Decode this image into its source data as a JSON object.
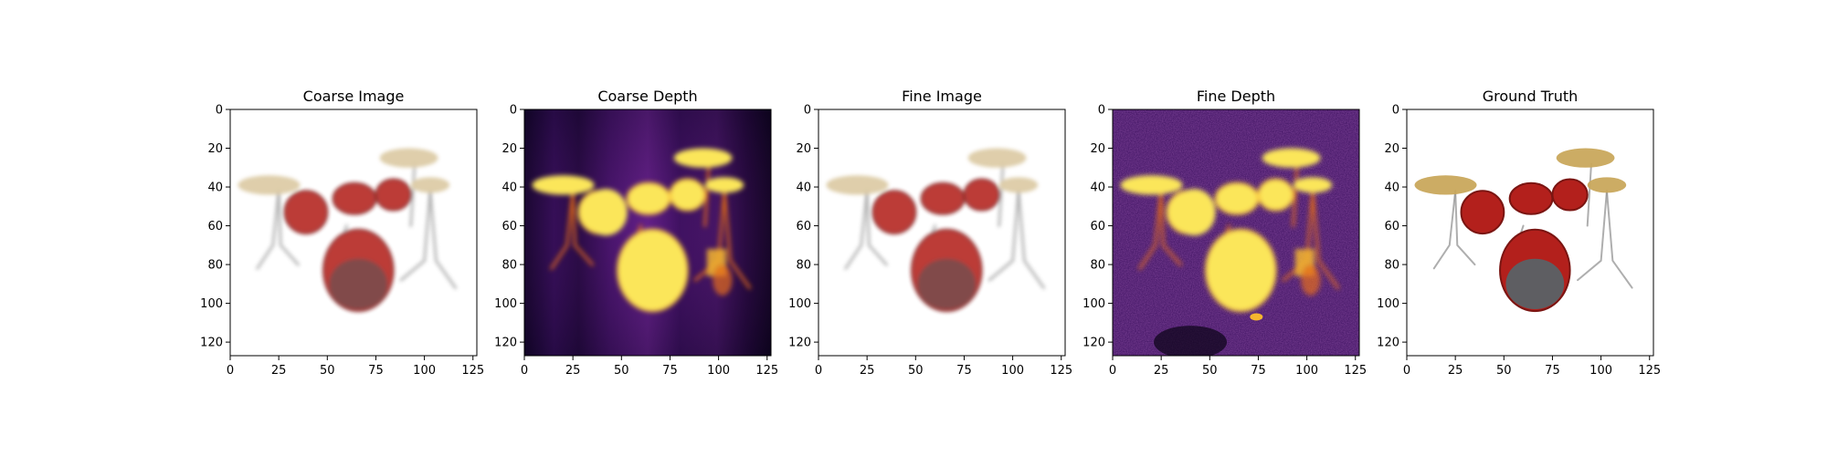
{
  "figure": {
    "background": "#ffffff"
  },
  "chart_data": [
    {
      "type": "image",
      "title": "Coarse Image",
      "style": "rgb",
      "xlim": [
        0,
        127
      ],
      "ylim": [
        127,
        0
      ],
      "xticks": [
        0,
        25,
        50,
        75,
        100,
        125
      ],
      "yticks": [
        0,
        20,
        40,
        60,
        80,
        100,
        120
      ]
    },
    {
      "type": "heatmap",
      "title": "Coarse Depth",
      "style": "depth",
      "colormap": "inferno",
      "noise": "smooth",
      "xlim": [
        0,
        127
      ],
      "ylim": [
        127,
        0
      ],
      "xticks": [
        0,
        25,
        50,
        75,
        100,
        125
      ],
      "yticks": [
        0,
        20,
        40,
        60,
        80,
        100,
        120
      ]
    },
    {
      "type": "image",
      "title": "Fine Image",
      "style": "rgb",
      "xlim": [
        0,
        127
      ],
      "ylim": [
        127,
        0
      ],
      "xticks": [
        0,
        25,
        50,
        75,
        100,
        125
      ],
      "yticks": [
        0,
        20,
        40,
        60,
        80,
        100,
        120
      ]
    },
    {
      "type": "heatmap",
      "title": "Fine Depth",
      "style": "depth",
      "colormap": "inferno",
      "noise": "grainy",
      "xlim": [
        0,
        127
      ],
      "ylim": [
        127,
        0
      ],
      "xticks": [
        0,
        25,
        50,
        75,
        100,
        125
      ],
      "yticks": [
        0,
        20,
        40,
        60,
        80,
        100,
        120
      ]
    },
    {
      "type": "image",
      "title": "Ground Truth",
      "style": "rgb-sharp",
      "xlim": [
        0,
        127
      ],
      "ylim": [
        127,
        0
      ],
      "xticks": [
        0,
        25,
        50,
        75,
        100,
        125
      ],
      "yticks": [
        0,
        20,
        40,
        60,
        80,
        100,
        120
      ]
    }
  ],
  "colors": {
    "drum_red": "#b3201c",
    "drum_dark": "#7a1512",
    "cymbal": "#d8c49a",
    "cymbal_gold": "#c9a85c",
    "metal": "#8c8c8c",
    "head_gray": "#5e5e62",
    "depth_bg": "#2a0a4a",
    "depth_hot": "#fbe65a",
    "depth_warm": "#f6b62e",
    "depth_mid": "#e66c1a"
  }
}
